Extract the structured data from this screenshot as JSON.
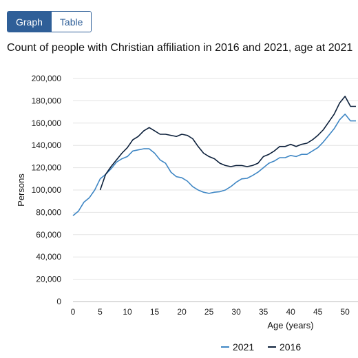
{
  "toggle": {
    "graph_label": "Graph",
    "table_label": "Table"
  },
  "chart_data": {
    "type": "line",
    "title": "Count of people with Christian affiliation in 2016 and 2021, age at 2021",
    "xlabel": "Age (years)",
    "ylabel": "Persons",
    "xlim": [
      0,
      52
    ],
    "ylim": [
      0,
      200000
    ],
    "x_ticks": [
      "0",
      "5",
      "10",
      "15",
      "20",
      "25",
      "30",
      "35",
      "40",
      "45",
      "50"
    ],
    "y_ticks": [
      "0",
      "20,000",
      "40,000",
      "60,000",
      "80,000",
      "100,000",
      "120,000",
      "140,000",
      "160,000",
      "180,000",
      "200,000"
    ],
    "grid": true,
    "legend_position": "bottom",
    "series": [
      {
        "name": "2021",
        "color": "#3e86c4",
        "x": [
          0,
          1,
          2,
          3,
          4,
          5,
          6,
          7,
          8,
          9,
          10,
          11,
          12,
          13,
          14,
          15,
          16,
          17,
          18,
          19,
          20,
          21,
          22,
          23,
          24,
          25,
          26,
          27,
          28,
          29,
          30,
          31,
          32,
          33,
          34,
          35,
          36,
          37,
          38,
          39,
          40,
          41,
          42,
          43,
          44,
          45,
          46,
          47,
          48,
          49,
          50,
          51,
          52
        ],
        "values": [
          77000,
          81000,
          89000,
          93000,
          100000,
          110000,
          114000,
          119000,
          125000,
          128000,
          130000,
          135000,
          136000,
          137000,
          137000,
          133000,
          127000,
          124000,
          116000,
          112000,
          111000,
          108000,
          103000,
          100000,
          98000,
          97000,
          98000,
          98500,
          100000,
          103000,
          107000,
          110000,
          110500,
          113000,
          116000,
          120000,
          124000,
          126000,
          129000,
          129000,
          131000,
          130000,
          132000,
          132000,
          135000,
          138000,
          143000,
          149000,
          155000,
          163000,
          168000,
          162000,
          162000
        ]
      },
      {
        "name": "2016",
        "color": "#0b1f3a",
        "x": [
          5,
          6,
          7,
          8,
          9,
          10,
          11,
          12,
          13,
          14,
          15,
          16,
          17,
          18,
          19,
          20,
          21,
          22,
          23,
          24,
          25,
          26,
          27,
          28,
          29,
          30,
          31,
          32,
          33,
          34,
          35,
          36,
          37,
          38,
          39,
          40,
          41,
          42,
          43,
          44,
          45,
          46,
          47,
          48,
          49,
          50,
          51,
          52
        ],
        "values": [
          100000,
          114000,
          121000,
          127000,
          133000,
          138000,
          145000,
          148000,
          153000,
          156000,
          153000,
          150000,
          150000,
          149000,
          148000,
          150000,
          149000,
          146000,
          139000,
          133000,
          130000,
          128000,
          124000,
          122000,
          121000,
          122000,
          122000,
          121000,
          122000,
          124000,
          130000,
          132000,
          135000,
          139000,
          139000,
          141000,
          139000,
          141000,
          142000,
          145000,
          149000,
          154000,
          161000,
          168000,
          178000,
          184000,
          175000,
          175000
        ]
      }
    ]
  }
}
